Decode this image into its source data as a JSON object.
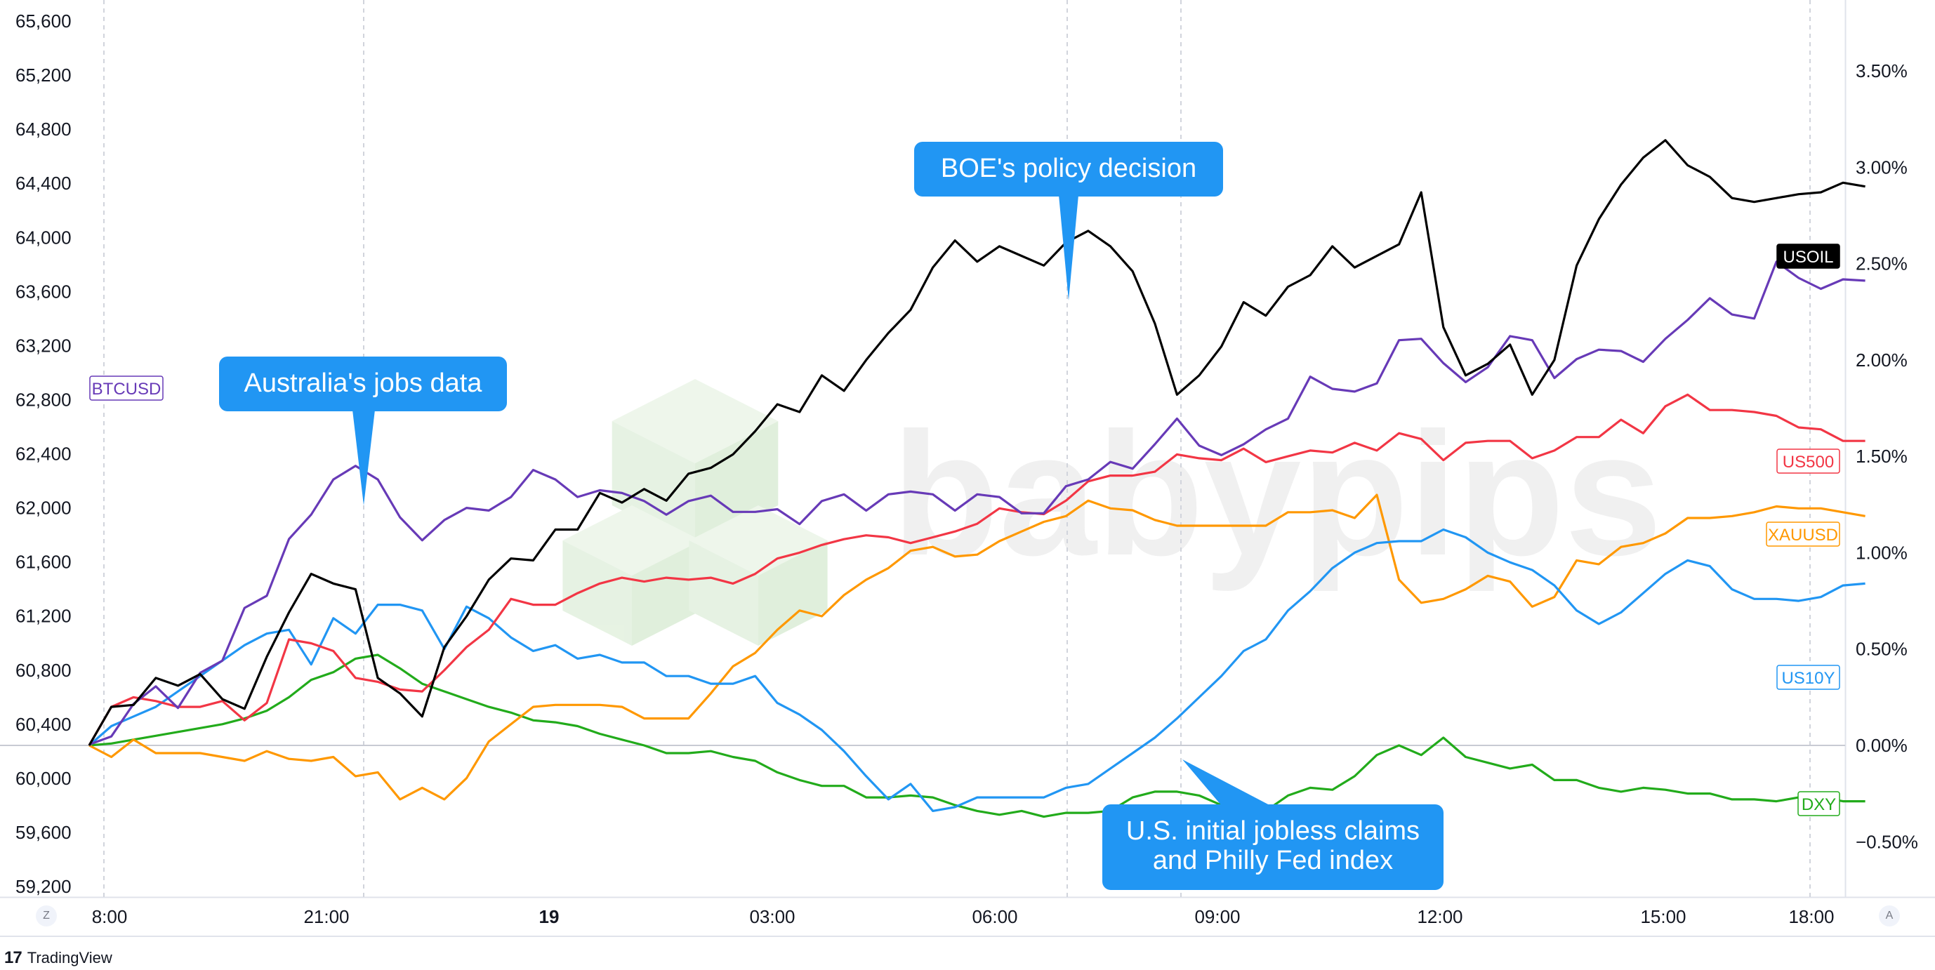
{
  "branding": {
    "logo_text": "17",
    "name": "TradingView"
  },
  "watermark": "babypips",
  "corner_buttons": {
    "left": "Z",
    "right": "A"
  },
  "chart_data": {
    "type": "line",
    "x_ticks": [
      "8:00",
      "21:00",
      "19",
      "03:00",
      "06:00",
      "09:00",
      "12:00",
      "15:00",
      "18:00"
    ],
    "x_ticks_bold": [
      "19"
    ],
    "x_range": [
      0,
      79
    ],
    "left_axis": {
      "ticks": [
        "65,600",
        "65,200",
        "64,800",
        "64,400",
        "64,000",
        "63,600",
        "63,200",
        "62,800",
        "62,400",
        "62,000",
        "61,600",
        "61,200",
        "60,800",
        "60,400",
        "60,000",
        "59,600",
        "59,200"
      ],
      "range": [
        59180,
        65680
      ]
    },
    "right_axis": {
      "ticks": [
        "3.50%",
        "3.00%",
        "2.50%",
        "2.00%",
        "1.50%",
        "1.00%",
        "0.50%",
        "0.00%",
        "−0.50%"
      ],
      "range": [
        -0.78,
        3.85
      ]
    },
    "series": [
      {
        "name": "USOIL",
        "color": "#000000",
        "label_style": "filled",
        "values": [
          0,
          0.2,
          0.21,
          0.35,
          0.31,
          0.37,
          0.24,
          0.19,
          0.46,
          0.69,
          0.89,
          0.84,
          0.81,
          0.35,
          0.27,
          0.15,
          0.51,
          0.67,
          0.86,
          0.97,
          0.96,
          1.12,
          1.12,
          1.31,
          1.26,
          1.33,
          1.27,
          1.41,
          1.44,
          1.51,
          1.63,
          1.77,
          1.73,
          1.92,
          1.84,
          2.0,
          2.14,
          2.26,
          2.48,
          2.62,
          2.51,
          2.59,
          2.54,
          2.49,
          2.61,
          2.67,
          2.59,
          2.46,
          2.19,
          1.82,
          1.92,
          2.07,
          2.3,
          2.23,
          2.38,
          2.44,
          2.59,
          2.48,
          2.54,
          2.6,
          2.87,
          2.17,
          1.92,
          1.98,
          2.08,
          1.82,
          2.0,
          2.49,
          2.73,
          2.91,
          3.05,
          3.14,
          3.01,
          2.95,
          2.84,
          2.82,
          2.84,
          2.86,
          2.87,
          2.92,
          2.9
        ]
      },
      {
        "name": "BTCUSD",
        "color": "#673ab7",
        "label_style": "outline",
        "values": [
          60250,
          60310,
          60550,
          60680,
          60520,
          60780,
          60870,
          61260,
          61350,
          61770,
          61950,
          62210,
          62310,
          62210,
          61930,
          61760,
          61910,
          62000,
          61980,
          62080,
          62280,
          62210,
          62080,
          62130,
          62110,
          62050,
          61950,
          62050,
          62090,
          61970,
          61970,
          61990,
          61880,
          62050,
          62100,
          61980,
          62100,
          62120,
          62100,
          61980,
          62100,
          62080,
          61960,
          61960,
          62160,
          62210,
          62340,
          62290,
          62470,
          62660,
          62460,
          62390,
          62470,
          62580,
          62660,
          62970,
          62880,
          62860,
          62920,
          63240,
          63250,
          63070,
          62930,
          63040,
          63270,
          63240,
          62960,
          63100,
          63170,
          63160,
          63080,
          63250,
          63390,
          63550,
          63430,
          63400,
          63820,
          63700,
          63620,
          63690,
          63680
        ]
      },
      {
        "name": "US500",
        "color": "#f23645",
        "label_style": "outline",
        "values": [
          0,
          0.2,
          0.25,
          0.23,
          0.2,
          0.2,
          0.23,
          0.13,
          0.22,
          0.55,
          0.53,
          0.49,
          0.35,
          0.33,
          0.29,
          0.28,
          0.39,
          0.51,
          0.6,
          0.76,
          0.73,
          0.73,
          0.79,
          0.84,
          0.87,
          0.85,
          0.87,
          0.86,
          0.87,
          0.84,
          0.89,
          0.97,
          1.0,
          1.04,
          1.07,
          1.09,
          1.08,
          1.05,
          1.08,
          1.11,
          1.15,
          1.23,
          1.21,
          1.2,
          1.27,
          1.37,
          1.4,
          1.4,
          1.42,
          1.51,
          1.49,
          1.48,
          1.54,
          1.47,
          1.5,
          1.53,
          1.52,
          1.57,
          1.53,
          1.62,
          1.59,
          1.48,
          1.57,
          1.58,
          1.58,
          1.49,
          1.53,
          1.6,
          1.6,
          1.69,
          1.62,
          1.76,
          1.82,
          1.74,
          1.74,
          1.73,
          1.71,
          1.65,
          1.64,
          1.58,
          1.58
        ]
      },
      {
        "name": "XAUUSD",
        "color": "#ff9800",
        "label_style": "outline",
        "values": [
          0,
          -0.06,
          0.03,
          -0.04,
          -0.04,
          -0.04,
          -0.06,
          -0.08,
          -0.03,
          -0.07,
          -0.08,
          -0.06,
          -0.16,
          -0.14,
          -0.28,
          -0.22,
          -0.28,
          -0.17,
          0.02,
          0.11,
          0.2,
          0.21,
          0.21,
          0.21,
          0.2,
          0.14,
          0.14,
          0.14,
          0.27,
          0.41,
          0.48,
          0.6,
          0.7,
          0.67,
          0.78,
          0.86,
          0.92,
          1.01,
          1.03,
          0.98,
          0.99,
          1.06,
          1.11,
          1.16,
          1.19,
          1.27,
          1.23,
          1.22,
          1.17,
          1.14,
          1.14,
          1.14,
          1.14,
          1.14,
          1.21,
          1.21,
          1.22,
          1.18,
          1.3,
          0.86,
          0.74,
          0.76,
          0.81,
          0.88,
          0.85,
          0.72,
          0.77,
          0.96,
          0.94,
          1.03,
          1.05,
          1.1,
          1.18,
          1.18,
          1.19,
          1.21,
          1.24,
          1.23,
          1.23,
          1.21,
          1.19
        ]
      },
      {
        "name": "US10Y",
        "color": "#2196f3",
        "label_style": "outline",
        "values": [
          0,
          0.1,
          0.15,
          0.2,
          0.28,
          0.36,
          0.44,
          0.52,
          0.58,
          0.6,
          0.42,
          0.66,
          0.58,
          0.73,
          0.73,
          0.7,
          0.5,
          0.72,
          0.66,
          0.56,
          0.49,
          0.52,
          0.45,
          0.47,
          0.43,
          0.43,
          0.36,
          0.36,
          0.32,
          0.32,
          0.36,
          0.22,
          0.16,
          0.08,
          -0.03,
          -0.16,
          -0.28,
          -0.2,
          -0.34,
          -0.32,
          -0.27,
          -0.27,
          -0.27,
          -0.27,
          -0.22,
          -0.2,
          -0.12,
          -0.04,
          0.04,
          0.14,
          0.25,
          0.36,
          0.49,
          0.55,
          0.7,
          0.8,
          0.92,
          1.0,
          1.05,
          1.06,
          1.06,
          1.12,
          1.08,
          1.0,
          0.95,
          0.91,
          0.83,
          0.7,
          0.63,
          0.69,
          0.79,
          0.89,
          0.96,
          0.93,
          0.81,
          0.76,
          0.76,
          0.75,
          0.77,
          0.83,
          0.84
        ]
      },
      {
        "name": "DXY",
        "color": "#22ab1b",
        "label_style": "outline",
        "values": [
          0,
          0.01,
          0.03,
          0.05,
          0.07,
          0.09,
          0.11,
          0.14,
          0.18,
          0.25,
          0.34,
          0.38,
          0.45,
          0.47,
          0.4,
          0.32,
          0.28,
          0.24,
          0.2,
          0.17,
          0.13,
          0.12,
          0.1,
          0.06,
          0.03,
          0.0,
          -0.04,
          -0.04,
          -0.03,
          -0.06,
          -0.08,
          -0.14,
          -0.18,
          -0.21,
          -0.21,
          -0.27,
          -0.27,
          -0.26,
          -0.27,
          -0.31,
          -0.34,
          -0.36,
          -0.34,
          -0.37,
          -0.35,
          -0.35,
          -0.34,
          -0.27,
          -0.24,
          -0.24,
          -0.26,
          -0.31,
          -0.34,
          -0.34,
          -0.26,
          -0.22,
          -0.23,
          -0.16,
          -0.05,
          0.0,
          -0.05,
          0.04,
          -0.06,
          -0.09,
          -0.12,
          -0.1,
          -0.18,
          -0.18,
          -0.22,
          -0.24,
          -0.22,
          -0.23,
          -0.25,
          -0.25,
          -0.28,
          -0.28,
          -0.29,
          -0.27,
          -0.27,
          -0.29,
          -0.29
        ]
      }
    ],
    "annotations": [
      {
        "text": [
          "Australia's jobs data"
        ],
        "at_index": 14.4
      },
      {
        "text": [
          "BOE's policy decision"
        ],
        "at_index": 49
      },
      {
        "text": [
          "U.S. initial jobless claims",
          "and Philly Fed index"
        ],
        "at_index": 54
      }
    ]
  }
}
